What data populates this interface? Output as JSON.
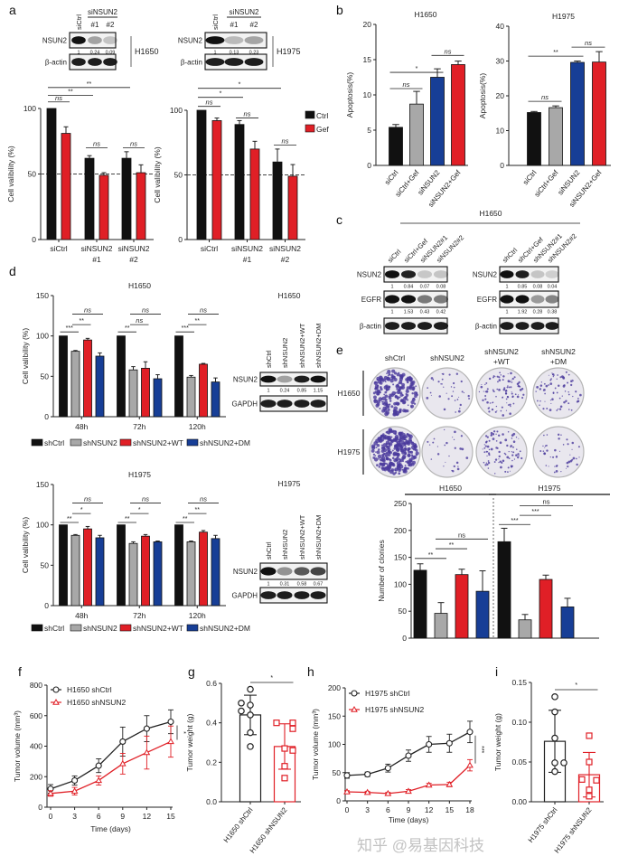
{
  "figure": {
    "panel_labels": {
      "a": "a",
      "b": "b",
      "c": "c",
      "d": "d",
      "e": "e",
      "f": "f",
      "g": "g",
      "h": "h",
      "i": "i"
    },
    "watermark": "知乎 @易基因科技"
  },
  "colors": {
    "black": "#111111",
    "grey": "#a8a8a8",
    "red": "#e01f26",
    "blue": "#173e96",
    "plate": "#e9e7ee",
    "colony": "#4a3a9c"
  },
  "blots": {
    "a_H1650": {
      "cell_line": "H1650",
      "group_label": "siNSUN2",
      "columns": [
        "siCtrl",
        "#1",
        "#2"
      ],
      "rows": [
        {
          "label": "NSUN2",
          "quant": [
            "1",
            "0.24",
            "0.09"
          ]
        },
        {
          "label": "β-actin"
        }
      ]
    },
    "a_H1975": {
      "cell_line": "H1975",
      "group_label": "siNSUN2",
      "columns": [
        "siCtrl",
        "#1",
        "#2"
      ],
      "rows": [
        {
          "label": "NSUN2",
          "quant": [
            "1",
            "0.13",
            "0.23"
          ]
        },
        {
          "label": "β-actin"
        }
      ]
    },
    "c_left": {
      "title": "H1650",
      "columns": [
        "siCtrl",
        "siCtrl+Gef",
        "siNSUN2#1",
        "siNSUN2#2"
      ],
      "rows": [
        {
          "label": "NSUN2",
          "quant": [
            "1",
            "0.84",
            "0.07",
            "0.08"
          ]
        },
        {
          "label": "EGFR",
          "quant": [
            "1",
            "1.53",
            "0.43",
            "0.42"
          ]
        },
        {
          "label": "β-actin"
        }
      ]
    },
    "c_right": {
      "columns": [
        "shCtrl",
        "shCtrl+Gef",
        "shNSUN2#1",
        "shNSUN2#2"
      ],
      "rows": [
        {
          "label": "NSUN2",
          "quant": [
            "1",
            "0.85",
            "0.08",
            "0.04"
          ]
        },
        {
          "label": "EGFR",
          "quant": [
            "1",
            "1.92",
            "0.28",
            "0.38"
          ]
        },
        {
          "label": "β-actin"
        }
      ]
    },
    "d_H1650": {
      "title": "H1650",
      "columns": [
        "shCtrl",
        "shNSUN2",
        "shNSUN2+WT",
        "shNSUN2+DM"
      ],
      "rows": [
        {
          "label": "NSUN2",
          "quant": [
            "1",
            "0.24",
            "0.85",
            "1.15"
          ]
        },
        {
          "label": "GAPDH"
        }
      ]
    },
    "d_H1975": {
      "title": "H1975",
      "columns": [
        "shCtrl",
        "shNSUN2",
        "shNSUN2+WT",
        "shNSUN2+DM"
      ],
      "rows": [
        {
          "label": "NSUN2",
          "quant": [
            "1",
            "0.31",
            "0.58",
            "0.67"
          ]
        },
        {
          "label": "GAPDH"
        }
      ]
    }
  },
  "colony": {
    "columns": [
      [
        "shCtrl"
      ],
      [
        "shNSUN2"
      ],
      [
        "shNSUN2",
        "+WT"
      ],
      [
        "shNSUN2",
        "+DM"
      ]
    ],
    "rows": [
      "H1650",
      "H1975"
    ]
  },
  "chart_data": [
    {
      "id": "a1",
      "panel": "a",
      "type": "bar",
      "title": "",
      "ylabel": "Cell valibility (%)",
      "ylim": [
        0,
        100
      ],
      "yticks": [
        0,
        50,
        100
      ],
      "categories": [
        "siCtrl",
        "siNSUN2 #1",
        "siNSUN2 #2"
      ],
      "reference_line": 50,
      "series": [
        {
          "name": "Ctrl",
          "color": "#111111",
          "values": [
            100,
            62,
            62
          ],
          "errors": [
            0,
            2,
            5
          ]
        },
        {
          "name": "Gef",
          "color": "#e01f26",
          "values": [
            81,
            49,
            51
          ],
          "errors": [
            5,
            2,
            6
          ]
        }
      ],
      "significance": [
        {
          "from": 0,
          "to": 1,
          "y": 105,
          "label": "ns"
        },
        {
          "from": 0,
          "to": 2,
          "y": 110,
          "label": "**"
        },
        {
          "from": 0,
          "to": 4,
          "y": 116,
          "label": "**"
        },
        {
          "from": 2,
          "to": 3,
          "y": 70,
          "label": "ns"
        },
        {
          "from": 4,
          "to": 5,
          "y": 70,
          "label": "ns"
        }
      ]
    },
    {
      "id": "a2",
      "panel": "a",
      "type": "bar",
      "title": "",
      "ylabel": "Cell valibility (%)",
      "ylim": [
        0,
        100
      ],
      "yticks": [
        0,
        50,
        100
      ],
      "categories": [
        "siCtrl",
        "siNSUN2 #1",
        "siNSUN2 #2"
      ],
      "reference_line": 50,
      "legend": "right",
      "series": [
        {
          "name": "Ctrl",
          "color": "#111111",
          "values": [
            100,
            89,
            60
          ],
          "errors": [
            0,
            3,
            10
          ]
        },
        {
          "name": "Gef",
          "color": "#e01f26",
          "values": [
            92,
            70,
            49
          ],
          "errors": [
            2,
            6,
            9
          ]
        }
      ],
      "significance": [
        {
          "from": 0,
          "to": 1,
          "y": 103,
          "label": "ns"
        },
        {
          "from": 0,
          "to": 2,
          "y": 110,
          "label": "*"
        },
        {
          "from": 0,
          "to": 4,
          "y": 117,
          "label": "*"
        },
        {
          "from": 2,
          "to": 3,
          "y": 94,
          "label": "ns"
        },
        {
          "from": 4,
          "to": 5,
          "y": 73,
          "label": "ns"
        }
      ]
    },
    {
      "id": "b1",
      "panel": "b",
      "type": "bar",
      "title": "H1650",
      "ylabel": "Apoptosis(%)",
      "ylim": [
        0,
        20
      ],
      "yticks": [
        0,
        5,
        10,
        15,
        20
      ],
      "categories": [
        "siCtrl",
        "siCtrl+Gef",
        "siNSUN2",
        "siNSUN2+Gef"
      ],
      "series": [
        {
          "colors": [
            "#111111",
            "#a8a8a8",
            "#173e96",
            "#e01f26"
          ],
          "values": [
            5.4,
            8.7,
            12.5,
            14.3
          ],
          "errors": [
            0.4,
            1.8,
            1.2,
            0.5
          ]
        }
      ],
      "significance": [
        {
          "from": 0,
          "to": 1,
          "y": 10.9,
          "label": "ns"
        },
        {
          "from": 0,
          "to": 2,
          "y": 13.2,
          "label": "*"
        },
        {
          "from": 2,
          "to": 3,
          "y": 15.6,
          "label": "ns"
        }
      ]
    },
    {
      "id": "b2",
      "panel": "b",
      "type": "bar",
      "title": "H1975",
      "ylabel": "Apoptosis(%)",
      "ylim": [
        0,
        40
      ],
      "yticks": [
        0,
        10,
        20,
        30,
        40
      ],
      "categories": [
        "siCtrl",
        "siCtrl+Gef",
        "siNSUN2",
        "siNSUN2+Gef"
      ],
      "series": [
        {
          "colors": [
            "#111111",
            "#a8a8a8",
            "#173e96",
            "#e01f26"
          ],
          "values": [
            15.2,
            16.6,
            29.6,
            29.7
          ],
          "errors": [
            0.3,
            0.5,
            0.4,
            3.0
          ]
        }
      ],
      "significance": [
        {
          "from": 0,
          "to": 1,
          "y": 18.4,
          "label": "ns"
        },
        {
          "from": 0,
          "to": 2,
          "y": 31.4,
          "label": "**"
        },
        {
          "from": 2,
          "to": 3,
          "y": 34,
          "label": "ns"
        }
      ]
    },
    {
      "id": "d1",
      "panel": "d",
      "type": "bar",
      "title": "H1650",
      "ylabel": "Cell valibility (%)",
      "ylim": [
        0,
        150
      ],
      "yticks": [
        0,
        50,
        100,
        150
      ],
      "categories": [
        "48h",
        "72h",
        "120h"
      ],
      "legend": "bottom",
      "series": [
        {
          "name": "shCtrl",
          "color": "#111111",
          "values": [
            100,
            100,
            100
          ],
          "errors": [
            0,
            0,
            0
          ]
        },
        {
          "name": "shNSUN2",
          "color": "#a8a8a8",
          "values": [
            81,
            58,
            49
          ],
          "errors": [
            1,
            4,
            2
          ]
        },
        {
          "name": "shNSUN2+WT",
          "color": "#e01f26",
          "values": [
            95,
            60,
            65
          ],
          "errors": [
            2,
            8,
            1
          ]
        },
        {
          "name": "shNSUN2+DM",
          "color": "#173e96",
          "values": [
            75,
            47,
            43
          ],
          "errors": [
            4,
            5,
            5
          ]
        }
      ],
      "significance": [
        {
          "from": 0,
          "to": 1,
          "y": 105,
          "label": "***"
        },
        {
          "from": 1,
          "to": 2,
          "y": 114,
          "label": "**"
        },
        {
          "from": 1,
          "to": 3,
          "y": 127,
          "label": "ns"
        },
        {
          "from": 4,
          "to": 5,
          "y": 105,
          "label": "**"
        },
        {
          "from": 5,
          "to": 6,
          "y": 114,
          "label": "ns"
        },
        {
          "from": 5,
          "to": 7,
          "y": 127,
          "label": "ns"
        },
        {
          "from": 8,
          "to": 9,
          "y": 105,
          "label": "***"
        },
        {
          "from": 9,
          "to": 10,
          "y": 114,
          "label": "**"
        },
        {
          "from": 9,
          "to": 11,
          "y": 127,
          "label": "ns"
        }
      ]
    },
    {
      "id": "d2",
      "panel": "d",
      "type": "bar",
      "title": "H1975",
      "ylabel": "Cell valibility (%)",
      "ylim": [
        0,
        150
      ],
      "yticks": [
        0,
        50,
        100,
        150
      ],
      "categories": [
        "48h",
        "72h",
        "120h"
      ],
      "legend": "bottom",
      "series": [
        {
          "name": "shCtrl",
          "color": "#111111",
          "values": [
            100,
            100,
            100
          ],
          "errors": [
            0,
            0,
            0
          ]
        },
        {
          "name": "shNSUN2",
          "color": "#a8a8a8",
          "values": [
            87,
            77,
            79
          ],
          "errors": [
            1,
            2,
            1
          ]
        },
        {
          "name": "shNSUN2+WT",
          "color": "#e01f26",
          "values": [
            95,
            86,
            91
          ],
          "errors": [
            3,
            2,
            2
          ]
        },
        {
          "name": "shNSUN2+DM",
          "color": "#173e96",
          "values": [
            84,
            79,
            83
          ],
          "errors": [
            3,
            1,
            4
          ]
        }
      ],
      "significance": [
        {
          "from": 0,
          "to": 1,
          "y": 103,
          "label": "**"
        },
        {
          "from": 1,
          "to": 2,
          "y": 114,
          "label": "*"
        },
        {
          "from": 1,
          "to": 3,
          "y": 127,
          "label": "ns"
        },
        {
          "from": 4,
          "to": 5,
          "y": 103,
          "label": "**"
        },
        {
          "from": 5,
          "to": 6,
          "y": 114,
          "label": "*"
        },
        {
          "from": 5,
          "to": 7,
          "y": 127,
          "label": "ns"
        },
        {
          "from": 8,
          "to": 9,
          "y": 103,
          "label": "**"
        },
        {
          "from": 9,
          "to": 10,
          "y": 114,
          "label": "**"
        },
        {
          "from": 9,
          "to": 11,
          "y": 127,
          "label": "ns"
        }
      ]
    },
    {
      "id": "e",
      "panel": "e",
      "type": "bar",
      "title": "",
      "ylabel": "Number of clonies",
      "ylim": [
        0,
        250
      ],
      "yticks": [
        0,
        50,
        100,
        150,
        200,
        250
      ],
      "categories": [
        "H1650",
        "H1975"
      ],
      "series": [
        {
          "name": "shCtrl",
          "color": "#111111",
          "values": [
            126,
            179
          ],
          "errors": [
            12,
            25
          ]
        },
        {
          "name": "shNSUN2",
          "color": "#a8a8a8",
          "values": [
            46,
            34
          ],
          "errors": [
            20,
            10
          ]
        },
        {
          "name": "shNSUN2+WT",
          "color": "#e01f26",
          "values": [
            118,
            109
          ],
          "errors": [
            10,
            8
          ]
        },
        {
          "name": "shNSUN2+DM",
          "color": "#173e96",
          "values": [
            87,
            58
          ],
          "errors": [
            38,
            16
          ]
        }
      ],
      "significance": [
        {
          "from": 0,
          "to": 1,
          "y": 148,
          "label": "**"
        },
        {
          "from": 1,
          "to": 2,
          "y": 166,
          "label": "**"
        },
        {
          "from": 1,
          "to": 3,
          "y": 184,
          "label": "ns"
        },
        {
          "from": 4,
          "to": 5,
          "y": 211,
          "label": "***"
        },
        {
          "from": 5,
          "to": 6,
          "y": 228,
          "label": "***"
        },
        {
          "from": 5,
          "to": 7,
          "y": 246,
          "label": "ns"
        }
      ]
    },
    {
      "id": "f",
      "panel": "f",
      "type": "line",
      "xlabel": "Time (days)",
      "ylabel": "Tumor volume (mm³)",
      "xlim": [
        0,
        15
      ],
      "xticks": [
        0,
        3,
        6,
        9,
        12,
        15
      ],
      "ylim": [
        0,
        800
      ],
      "yticks": [
        0,
        200,
        400,
        600,
        800
      ],
      "significance": "*",
      "series": [
        {
          "name": "H1650 shCtrl",
          "color": "#222222",
          "marker": "circle",
          "x": [
            0,
            3,
            6,
            9,
            12,
            15
          ],
          "values": [
            120,
            175,
            272,
            430,
            515,
            560
          ],
          "errors": [
            28,
            30,
            45,
            95,
            85,
            78
          ]
        },
        {
          "name": "H1650 shNSUN2",
          "color": "#e01f26",
          "marker": "triangle",
          "x": [
            0,
            3,
            6,
            9,
            12,
            15
          ],
          "values": [
            90,
            105,
            175,
            285,
            358,
            430
          ],
          "errors": [
            18,
            25,
            30,
            68,
            108,
            102
          ]
        }
      ]
    },
    {
      "id": "g",
      "panel": "g",
      "type": "bar-scatter",
      "ylabel": "Tumor weight (g)",
      "ylim": [
        0,
        0.6
      ],
      "yticks": [
        0,
        0.2,
        0.4,
        0.6
      ],
      "ytick_labels": [
        "0.0",
        "0.2",
        "0.4",
        "0.6"
      ],
      "significance": "*",
      "groups": [
        {
          "name": "H1650 shCtrl",
          "color": "#222222",
          "marker": "circle",
          "mean": 0.44,
          "sd": 0.1,
          "points": [
            0.57,
            0.5,
            0.49,
            0.46,
            0.44,
            0.35,
            0.28
          ]
        },
        {
          "name": "H1650 shNSUN2",
          "color": "#e01f26",
          "marker": "square",
          "mean": 0.28,
          "sd": 0.115,
          "points": [
            0.4,
            0.4,
            0.37,
            0.27,
            0.26,
            0.18,
            0.12
          ]
        }
      ]
    },
    {
      "id": "h",
      "panel": "h",
      "type": "line",
      "xlabel": "Time (days)",
      "ylabel": "Tumor volume (mm³)",
      "xlim": [
        0,
        18
      ],
      "xticks": [
        0,
        3,
        6,
        9,
        12,
        15,
        18
      ],
      "ylim": [
        0,
        200
      ],
      "yticks": [
        0,
        50,
        100,
        150,
        200
      ],
      "significance": "***",
      "series": [
        {
          "name": "H1975 shCtrl",
          "color": "#222222",
          "marker": "circle",
          "x": [
            0,
            3,
            6,
            9,
            12,
            15,
            18
          ],
          "values": [
            45,
            47,
            58,
            80,
            100,
            102,
            122
          ],
          "errors": [
            5,
            4,
            7,
            10,
            14,
            16,
            19
          ]
        },
        {
          "name": "H1975 shNSUN2",
          "color": "#e01f26",
          "marker": "triangle",
          "x": [
            0,
            3,
            6,
            9,
            12,
            15,
            18
          ],
          "values": [
            16,
            15,
            13,
            17,
            28,
            29,
            63
          ],
          "errors": [
            2,
            2,
            2,
            3,
            3,
            4,
            10
          ]
        }
      ]
    },
    {
      "id": "i",
      "panel": "i",
      "type": "bar-scatter",
      "ylabel": "Tumor weight (g)",
      "ylim": [
        0,
        0.15
      ],
      "yticks": [
        0,
        0.05,
        0.1,
        0.15
      ],
      "ytick_labels": [
        "0.00",
        "0.05",
        "0.10",
        "0.15"
      ],
      "significance": "*",
      "groups": [
        {
          "name": "H1975 shCtrl",
          "color": "#222222",
          "marker": "circle",
          "mean": 0.076,
          "sd": 0.039,
          "points": [
            0.132,
            0.113,
            0.08,
            0.049,
            0.049,
            0.038
          ]
        },
        {
          "name": "H1975 shNSUN2",
          "color": "#e01f26",
          "marker": "square",
          "mean": 0.034,
          "sd": 0.028,
          "points": [
            0.083,
            0.05,
            0.028,
            0.027,
            0.015,
            0.007
          ]
        }
      ]
    }
  ]
}
